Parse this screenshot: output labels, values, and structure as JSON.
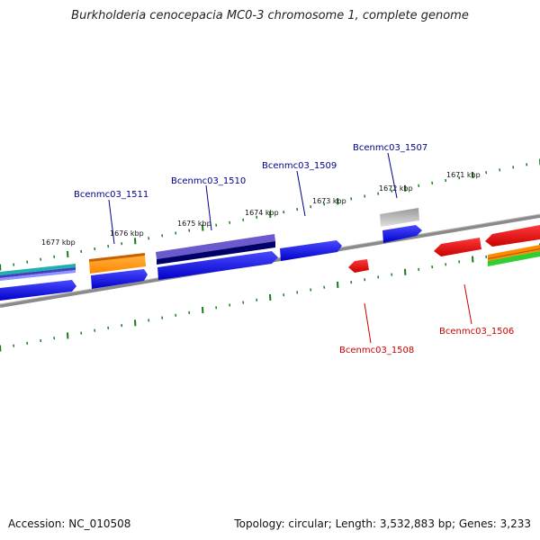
{
  "title": "Burkholderia cenocepacia MC0-3 chromosome 1, complete genome",
  "footer": {
    "accession": "Accession: NC_010508",
    "stats": "Topology: circular; Length: 3,532,883 bp; Genes: 3,233"
  },
  "ruler": [
    "1677 kbp",
    "1676 kbp",
    "1675 kbp",
    "1674 kbp",
    "1673 kbp",
    "1672 kbp",
    "1671 kbp"
  ],
  "genes": {
    "forward": [
      "Bcenmc03_1511",
      "Bcenmc03_1510",
      "Bcenmc03_1509",
      "Bcenmc03_1507"
    ],
    "reverse": [
      "Bcenmc03_1508",
      "Bcenmc03_1506"
    ]
  },
  "colors": {
    "forward_label": "#00008b",
    "reverse_label": "#cc0000",
    "forward_gene": "#0000ee",
    "reverse_gene": "#ee0000",
    "tick": "#1a7a1a",
    "backbone": "#888888"
  }
}
